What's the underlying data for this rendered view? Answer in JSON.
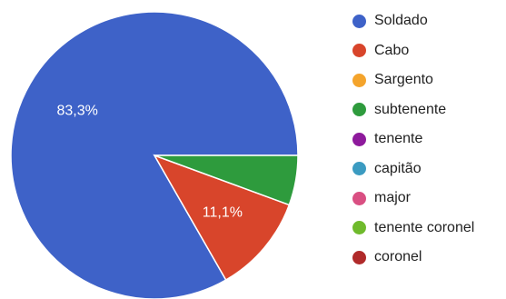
{
  "chart_data": {
    "type": "pie",
    "slices": [
      {
        "label": "Soldado",
        "value": 83.3,
        "color": "#3e62c8",
        "data_label": "83,3%"
      },
      {
        "label": "Cabo",
        "value": 11.1,
        "color": "#d8452b",
        "data_label": "11,1%"
      },
      {
        "label": "Sargento",
        "value": 0,
        "color": "#f4a42c",
        "data_label": ""
      },
      {
        "label": "subtenente",
        "value": 5.6,
        "color": "#2e9b3d",
        "data_label": ""
      },
      {
        "label": "tenente",
        "value": 0,
        "color": "#8e1a9c",
        "data_label": ""
      },
      {
        "label": "capitão",
        "value": 0,
        "color": "#3b9bc1",
        "data_label": ""
      },
      {
        "label": "major",
        "value": 0,
        "color": "#d94f82",
        "data_label": ""
      },
      {
        "label": "tenente coronel",
        "value": 0,
        "color": "#6fba2c",
        "data_label": ""
      },
      {
        "label": "coronel",
        "value": 0,
        "color": "#b02a2a",
        "data_label": ""
      }
    ],
    "legend_position": "right",
    "start_angle": "3 o'clock",
    "direction": "counter-clockwise"
  }
}
